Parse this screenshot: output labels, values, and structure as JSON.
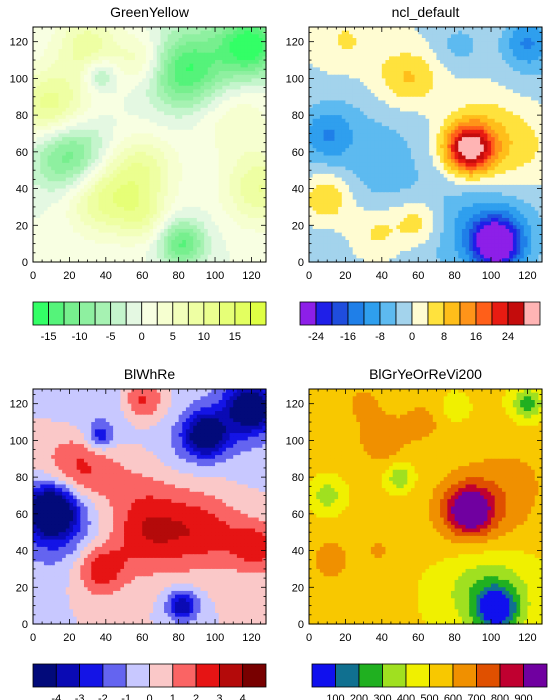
{
  "chart_data": [
    {
      "type": "heatmap",
      "title": "GreenYellow",
      "xlabel": "",
      "ylabel": "",
      "xlim": [
        0,
        128
      ],
      "ylim": [
        0,
        128
      ],
      "xticks": [
        0,
        20,
        40,
        60,
        80,
        100,
        120
      ],
      "yticks": [
        0,
        20,
        40,
        60,
        80,
        100,
        120
      ],
      "colorbar": {
        "tick_labels": [
          "-15",
          "-10",
          "-5",
          "0",
          "5",
          "10",
          "15"
        ],
        "tick_bounds": [
          1,
          3,
          5,
          7,
          9,
          11,
          13
        ],
        "colors": [
          "#33ff66",
          "#55f37a",
          "#77ef8e",
          "#8ef0a0",
          "#a6f2b2",
          "#c4f5cc",
          "#e4f8e2",
          "#f8ffe2",
          "#f6ffd0",
          "#f2ffbb",
          "#eeffa3",
          "#ebff8f",
          "#e6ff77",
          "#e3ff60",
          "#dfff44"
        ],
        "levels": [
          -18,
          -15,
          -12.5,
          -10,
          -7.5,
          -5,
          -2.5,
          0,
          2.5,
          5,
          7.5,
          10,
          12.5,
          15,
          17.5,
          20
        ]
      },
      "features": [
        {
          "x": 120,
          "y": 118,
          "r": 12,
          "amp": -16
        },
        {
          "x": 82,
          "y": 103,
          "r": 14,
          "amp": -11
        },
        {
          "x": 95,
          "y": 110,
          "r": 18,
          "amp": -6
        },
        {
          "x": 37,
          "y": 102,
          "r": 6,
          "amp": -8
        },
        {
          "x": 20,
          "y": 58,
          "r": 14,
          "amp": -13
        },
        {
          "x": 82,
          "y": 10,
          "r": 9,
          "amp": -13
        },
        {
          "x": 10,
          "y": 85,
          "r": 14,
          "amp": 12
        },
        {
          "x": 38,
          "y": 35,
          "r": 14,
          "amp": 11
        },
        {
          "x": 60,
          "y": 50,
          "r": 13,
          "amp": 9
        },
        {
          "x": 60,
          "y": 25,
          "r": 10,
          "amp": 7
        },
        {
          "x": 125,
          "y": 40,
          "r": 14,
          "amp": 10
        },
        {
          "x": 110,
          "y": 80,
          "r": 15,
          "amp": 5
        },
        {
          "x": 60,
          "y": 110,
          "r": 10,
          "amp": 7
        },
        {
          "x": 30,
          "y": 118,
          "r": 12,
          "amp": 9
        }
      ]
    },
    {
      "type": "heatmap",
      "title": "ncl_default",
      "xlabel": "",
      "ylabel": "",
      "xlim": [
        0,
        128
      ],
      "ylim": [
        0,
        128
      ],
      "xticks": [
        0,
        20,
        40,
        60,
        80,
        100,
        120
      ],
      "yticks": [
        0,
        20,
        40,
        60,
        80,
        100,
        120
      ],
      "colorbar": {
        "tick_labels": [
          "-24",
          "-16",
          "-8",
          "0",
          "8",
          "16",
          "24"
        ],
        "tick_bounds": [
          1,
          3,
          5,
          7,
          9,
          11,
          13
        ],
        "colors": [
          "#8d1fe8",
          "#1f1fe8",
          "#1f4ddd",
          "#1f7fe8",
          "#2f9fee",
          "#5dbaf0",
          "#a3d3ec",
          "#fffcd2",
          "#ffe23d",
          "#ffbe1a",
          "#ff9419",
          "#ff5f19",
          "#e81b12",
          "#c40c0c",
          "#ffb4b4"
        ],
        "levels": [
          -30,
          -24,
          -20,
          -16,
          -12,
          -8,
          -4,
          0,
          4,
          8,
          12,
          16,
          20,
          24,
          28,
          40
        ]
      },
      "features": [
        {
          "x": 103,
          "y": 10,
          "r": 9,
          "amp": -28
        },
        {
          "x": 100,
          "y": 20,
          "r": 20,
          "amp": -12
        },
        {
          "x": 88,
          "y": 62,
          "r": 9,
          "amp": 30
        },
        {
          "x": 100,
          "y": 62,
          "r": 22,
          "amp": 10
        },
        {
          "x": 40,
          "y": 50,
          "r": 35,
          "amp": -6
        },
        {
          "x": 10,
          "y": 70,
          "r": 10,
          "amp": -9
        },
        {
          "x": 50,
          "y": 100,
          "r": 12,
          "amp": 7
        },
        {
          "x": 10,
          "y": 35,
          "r": 10,
          "amp": 11
        },
        {
          "x": 60,
          "y": 100,
          "r": 10,
          "amp": 4
        },
        {
          "x": 37,
          "y": 17,
          "r": 11,
          "amp": 8
        },
        {
          "x": 60,
          "y": 22,
          "r": 9,
          "amp": 9
        },
        {
          "x": 20,
          "y": 120,
          "r": 12,
          "amp": 5
        },
        {
          "x": 120,
          "y": 120,
          "r": 9,
          "amp": -10
        },
        {
          "x": 82,
          "y": 118,
          "r": 9,
          "amp": -5
        },
        {
          "x": 122,
          "y": 105,
          "r": 18,
          "amp": -4
        }
      ]
    },
    {
      "type": "heatmap",
      "title": "BlWhRe",
      "xlabel": "",
      "ylabel": "",
      "xlim": [
        0,
        128
      ],
      "ylim": [
        0,
        128
      ],
      "xticks": [
        0,
        20,
        40,
        60,
        80,
        100,
        120
      ],
      "yticks": [
        0,
        20,
        40,
        60,
        80,
        100,
        120
      ],
      "colorbar": {
        "tick_labels": [
          "-4",
          "-3",
          "-2",
          "-1",
          "0",
          "1",
          "2",
          "3",
          "4"
        ],
        "tick_bounds": [
          1,
          2,
          3,
          4,
          5,
          6,
          7,
          8,
          9
        ],
        "colors": [
          "#020a7a",
          "#0a0ab4",
          "#1414e6",
          "#6464f0",
          "#c8c8ff",
          "#fac8c8",
          "#fa6464",
          "#e61414",
          "#b40a0a",
          "#780000"
        ],
        "levels": [
          -5,
          -4,
          -3,
          -2,
          -1,
          0,
          1,
          2,
          3,
          4,
          5
        ]
      },
      "features": [
        {
          "x": 10,
          "y": 62,
          "r": 9,
          "amp": -6
        },
        {
          "x": 15,
          "y": 55,
          "r": 18,
          "amp": -2.5
        },
        {
          "x": 95,
          "y": 103,
          "r": 8,
          "amp": -5
        },
        {
          "x": 120,
          "y": 118,
          "r": 9,
          "amp": -5
        },
        {
          "x": 110,
          "y": 112,
          "r": 18,
          "amp": -1.5
        },
        {
          "x": 37,
          "y": 102,
          "r": 5,
          "amp": -2.5
        },
        {
          "x": 82,
          "y": 10,
          "r": 6,
          "amp": -4
        },
        {
          "x": 65,
          "y": 50,
          "r": 15,
          "amp": 2.5
        },
        {
          "x": 95,
          "y": 50,
          "r": 14,
          "amp": 2.2
        },
        {
          "x": 122,
          "y": 42,
          "r": 10,
          "amp": 2.5
        },
        {
          "x": 37,
          "y": 30,
          "r": 10,
          "amp": 2.8
        },
        {
          "x": 25,
          "y": 85,
          "r": 14,
          "amp": 2.5
        },
        {
          "x": 60,
          "y": 122,
          "r": 8,
          "amp": 2.5
        },
        {
          "x": 55,
          "y": 75,
          "r": 25,
          "amp": 1.0
        },
        {
          "x": 40,
          "y": 110,
          "r": 18,
          "amp": -1.2
        },
        {
          "x": 80,
          "y": 95,
          "r": 12,
          "amp": -1.0
        }
      ]
    },
    {
      "type": "heatmap",
      "title": "BlGrYeOrReVi200",
      "xlabel": "",
      "ylabel": "",
      "xlim": [
        0,
        128
      ],
      "ylim": [
        0,
        128
      ],
      "xticks": [
        0,
        20,
        40,
        60,
        80,
        100,
        120
      ],
      "yticks": [
        0,
        20,
        40,
        60,
        80,
        100,
        120
      ],
      "colorbar": {
        "tick_labels": [
          "100",
          "200",
          "300",
          "400",
          "500",
          "600",
          "700",
          "800",
          "900"
        ],
        "tick_bounds": [
          1,
          2,
          3,
          4,
          5,
          6,
          7,
          8,
          9
        ],
        "colors": [
          "#1010ee",
          "#107090",
          "#20b020",
          "#a0e020",
          "#f0f000",
          "#f8c800",
          "#f09000",
          "#e05000",
          "#c00030",
          "#7000a0"
        ],
        "levels": [
          0,
          100,
          200,
          300,
          400,
          500,
          600,
          700,
          800,
          900,
          1000
        ]
      },
      "base": 520,
      "features": [
        {
          "x": 103,
          "y": 8,
          "r": 8,
          "amp": -460
        },
        {
          "x": 98,
          "y": 20,
          "r": 18,
          "amp": -230
        },
        {
          "x": 88,
          "y": 62,
          "r": 9,
          "amp": 460
        },
        {
          "x": 95,
          "y": 60,
          "r": 20,
          "amp": 170
        },
        {
          "x": 10,
          "y": 70,
          "r": 6,
          "amp": -180
        },
        {
          "x": 50,
          "y": 80,
          "r": 5,
          "amp": -230
        },
        {
          "x": 120,
          "y": 120,
          "r": 6,
          "amp": -260
        },
        {
          "x": 80,
          "y": 118,
          "r": 5,
          "amp": -130
        },
        {
          "x": 40,
          "y": 100,
          "r": 9,
          "amp": 160
        },
        {
          "x": 30,
          "y": 120,
          "r": 9,
          "amp": 100
        },
        {
          "x": 12,
          "y": 35,
          "r": 9,
          "amp": 130
        },
        {
          "x": 62,
          "y": 110,
          "r": 9,
          "amp": 110
        },
        {
          "x": 38,
          "y": 40,
          "r": 4,
          "amp": 120
        },
        {
          "x": 115,
          "y": 80,
          "r": 13,
          "amp": 60
        }
      ]
    }
  ]
}
